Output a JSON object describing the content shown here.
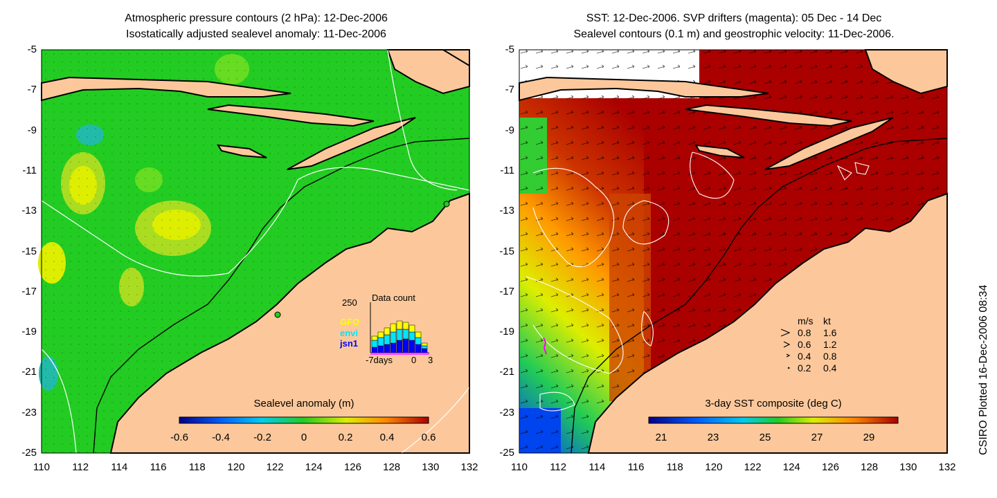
{
  "left_panel": {
    "title_line1": "Atmospheric pressure contours (2 hPa): 12-Dec-2006",
    "title_line2": "Isostatically adjusted sealevel anomaly: 11-Dec-2006",
    "colorbar_label": "Sealevel anomaly (m)",
    "colorbar_ticks": [
      "-0.6",
      "-0.4",
      "-0.2",
      "0",
      "0.2",
      "0.4",
      "0.6"
    ],
    "histogram": {
      "ymax_label": "250",
      "title": "Data count",
      "series_labels": [
        "GFO",
        "envi",
        "jsn1"
      ],
      "series_colors": [
        "#ffff00",
        "#00e5ff",
        "#0000ff"
      ],
      "x_labels": [
        "-7days",
        "0",
        "3"
      ]
    }
  },
  "right_panel": {
    "title_line1": "SST: 12-Dec-2006. SVP drifters (magenta): 05 Dec - 14 Dec",
    "title_line2": "Sealevel contours (0.1 m) and geostrophic velocity: 11-Dec-2006.",
    "colorbar_label": "3-day SST composite (deg C)",
    "colorbar_ticks": [
      "21",
      "23",
      "25",
      "27",
      "29"
    ],
    "velocity_legend": {
      "header_ms": "m/s",
      "header_kt": "kt",
      "rows": [
        {
          "ms": "0.8",
          "kt": "1.6"
        },
        {
          "ms": "0.6",
          "kt": "1.2"
        },
        {
          "ms": "0.4",
          "kt": "0.8"
        },
        {
          "ms": "0.2",
          "kt": "0.4"
        }
      ]
    }
  },
  "axes": {
    "y_ticks": [
      "-5",
      "-7",
      "-9",
      "-11",
      "-13",
      "-15",
      "-17",
      "-19",
      "-21",
      "-23",
      "-25"
    ],
    "x_ticks": [
      "110",
      "112",
      "114",
      "116",
      "118",
      "120",
      "122",
      "124",
      "126",
      "128",
      "130",
      "132"
    ]
  },
  "credit": "CSIRO Plotted 16-Dec-2006 08:34",
  "colors": {
    "land": "#fcc89b",
    "ocean_green": "#22cc22",
    "sst_hot": "#aa0000"
  }
}
